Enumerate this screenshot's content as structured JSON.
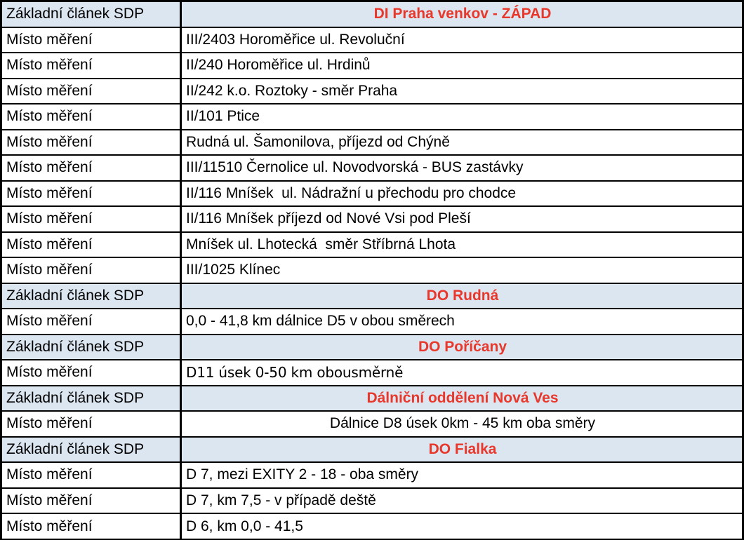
{
  "colors": {
    "section_header_bg": "#dce6f1",
    "section_header_text": "#e8372b",
    "data_row_bg": "#ffffff",
    "body_text": "#000000",
    "border": "#000000"
  },
  "table": {
    "rows": [
      {
        "type": "header",
        "label": "Základní článek SDP",
        "value": "DI Praha venkov - ZÁPAD"
      },
      {
        "type": "data",
        "label": "Místo měření",
        "value": "III/2403 Horoměřice ul. Revoluční"
      },
      {
        "type": "data",
        "label": "Místo měření",
        "value": "II/240 Horoměřice ul. Hrdinů"
      },
      {
        "type": "data",
        "label": "Místo měření",
        "value": "II/242 k.o. Roztoky - směr Praha"
      },
      {
        "type": "data",
        "label": "Místo měření",
        "value": "II/101 Ptice"
      },
      {
        "type": "data",
        "label": "Místo měření",
        "value": "Rudná ul. Šamonilova, příjezd od Chýně"
      },
      {
        "type": "data",
        "label": "Místo měření",
        "value": "III/11510 Černolice ul. Novodvorská - BUS zastávky"
      },
      {
        "type": "data",
        "label": "Místo měření",
        "value": "II/116 Mníšek  ul. Nádražní u přechodu pro chodce"
      },
      {
        "type": "data",
        "label": "Místo měření",
        "value": "II/116 Mníšek příjezd od Nové Vsi pod Pleší"
      },
      {
        "type": "data",
        "label": "Místo měření",
        "value": "Mníšek ul. Lhotecká  směr Stříbrná Lhota"
      },
      {
        "type": "data",
        "label": "Místo měření",
        "value": "III/1025 Klínec"
      },
      {
        "type": "header",
        "label": "Základní článek SDP",
        "value": "DO Rudná"
      },
      {
        "type": "data",
        "label": "Místo měření",
        "value": "0,0 - 41,8 km dálnice D5 v obou směrech"
      },
      {
        "type": "header",
        "label": "Základní článek SDP",
        "value": "DO Poříčany"
      },
      {
        "type": "data",
        "label": "Místo měření",
        "value": "D11 úsek 0-50 km obousměrně",
        "font": "alt"
      },
      {
        "type": "header",
        "label": "Základní článek SDP",
        "value": "Dálniční oddělení Nová Ves"
      },
      {
        "type": "data",
        "label": "Místo měření",
        "value": "Dálnice D8 úsek 0km - 45 km oba směry",
        "align": "center"
      },
      {
        "type": "header",
        "label": "Základní článek SDP",
        "value": "DO Fialka"
      },
      {
        "type": "data",
        "label": "Místo měření",
        "value": "D 7, mezi EXITY 2 - 18 - oba směry"
      },
      {
        "type": "data",
        "label": "Místo měření",
        "value": "D 7, km 7,5 - v případě deště"
      },
      {
        "type": "data",
        "label": "Místo měření",
        "value": "D 6, km 0,0 - 41,5"
      }
    ]
  }
}
